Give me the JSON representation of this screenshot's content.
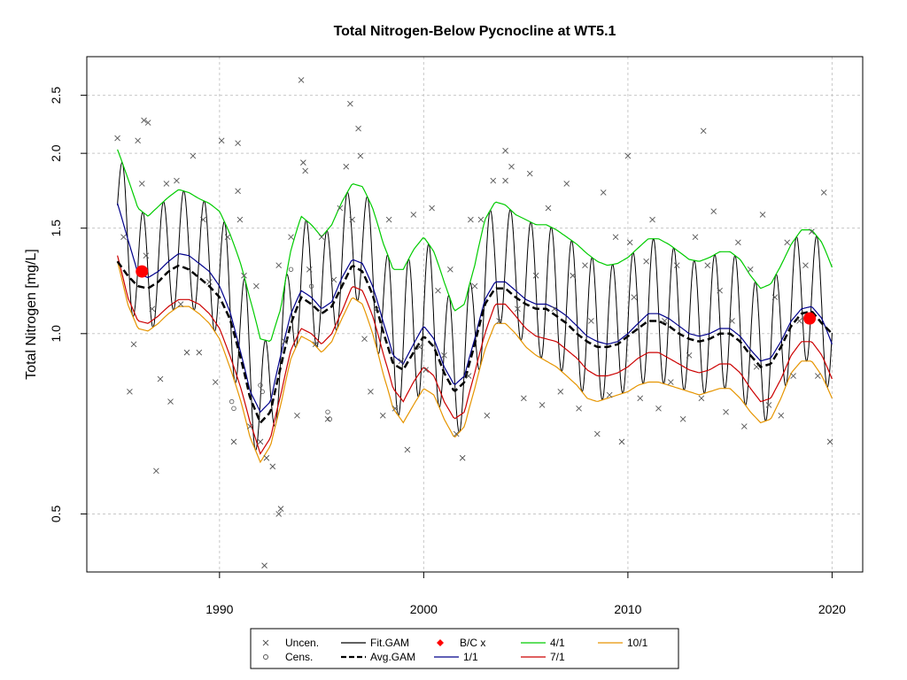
{
  "chart_data": {
    "type": "line",
    "title": "Total Nitrogen-Below Pycnocline at WT5.1",
    "xlabel": "",
    "ylabel": "Total Nitrogen [mg/L]",
    "y_scale": "log",
    "xlim": [
      1983.5,
      2021.5
    ],
    "ylim": [
      0.4,
      2.9
    ],
    "xticks": [
      1990,
      2000,
      2010,
      2020
    ],
    "yticks": [
      0.5,
      1.0,
      1.5,
      2.0,
      2.5
    ],
    "ytick_labels": [
      "0.5",
      "1.0",
      "1.5",
      "2.0",
      "2.5"
    ],
    "grid": true,
    "legend_position": "bottom",
    "colors": {
      "fit_gam": "#000000",
      "avg_gam": "#000000",
      "apr1": "#00cc00",
      "jan1": "#00008b",
      "jul1": "#cc0000",
      "oct1": "#e69500",
      "points": "#555555",
      "bc": "#ff0000"
    },
    "legend": [
      {
        "label": "Uncen.",
        "symbol": "x",
        "color": "#555555"
      },
      {
        "label": "Cens.",
        "symbol": "o",
        "color": "#555555"
      },
      {
        "label": "Fit.GAM",
        "symbol": "line",
        "color": "#000000"
      },
      {
        "label": "Avg.GAM",
        "symbol": "dash",
        "color": "#000000"
      },
      {
        "label": "B/C x",
        "symbol": "diamond",
        "color": "#ff0000"
      },
      {
        "label": "1/1",
        "symbol": "line",
        "color": "#00008b"
      },
      {
        "label": "4/1",
        "symbol": "line",
        "color": "#00cc00"
      },
      {
        "label": "7/1",
        "symbol": "line",
        "color": "#cc0000"
      },
      {
        "label": "10/1",
        "symbol": "line",
        "color": "#e69500"
      }
    ],
    "series": [
      {
        "name": "4/1",
        "x": [
          1985.0,
          1985.5,
          1986.0,
          1986.5,
          1987.0,
          1987.5,
          1988.0,
          1988.5,
          1989.0,
          1989.5,
          1990.0,
          1990.5,
          1991.0,
          1991.5,
          1992.0,
          1992.5,
          1993.0,
          1993.5,
          1994.0,
          1994.5,
          1995.0,
          1995.5,
          1996.0,
          1996.5,
          1997.0,
          1997.5,
          1998.0,
          1998.5,
          1999.0,
          1999.5,
          2000.0,
          2000.5,
          2001.0,
          2001.5,
          2002.0,
          2002.5,
          2003.0,
          2003.5,
          2004.0,
          2004.5,
          2005.0,
          2005.5,
          2006.0,
          2006.5,
          2007.0,
          2007.5,
          2008.0,
          2008.5,
          2009.0,
          2009.5,
          2010.0,
          2010.5,
          2011.0,
          2011.5,
          2012.0,
          2012.5,
          2013.0,
          2013.5,
          2014.0,
          2014.5,
          2015.0,
          2015.5,
          2016.0,
          2016.5,
          2017.0,
          2017.5,
          2018.0,
          2018.5,
          2019.0,
          2019.5,
          2020.0
        ],
        "values": [
          2.03,
          1.82,
          1.62,
          1.57,
          1.63,
          1.69,
          1.74,
          1.72,
          1.68,
          1.65,
          1.6,
          1.47,
          1.32,
          1.14,
          0.98,
          0.97,
          1.1,
          1.38,
          1.57,
          1.52,
          1.45,
          1.52,
          1.66,
          1.78,
          1.76,
          1.62,
          1.42,
          1.28,
          1.28,
          1.38,
          1.45,
          1.37,
          1.22,
          1.09,
          1.12,
          1.3,
          1.55,
          1.66,
          1.64,
          1.58,
          1.55,
          1.52,
          1.52,
          1.49,
          1.45,
          1.41,
          1.36,
          1.32,
          1.3,
          1.31,
          1.34,
          1.39,
          1.44,
          1.44,
          1.41,
          1.37,
          1.33,
          1.32,
          1.34,
          1.37,
          1.37,
          1.33,
          1.25,
          1.19,
          1.21,
          1.3,
          1.41,
          1.49,
          1.49,
          1.42,
          1.29
        ]
      },
      {
        "name": "1/1",
        "x": [
          1985.0,
          1985.5,
          1986.0,
          1986.5,
          1987.0,
          1987.5,
          1988.0,
          1988.5,
          1989.0,
          1989.5,
          1990.0,
          1990.5,
          1991.0,
          1991.5,
          1992.0,
          1992.5,
          1993.0,
          1993.5,
          1994.0,
          1994.5,
          1995.0,
          1995.5,
          1996.0,
          1996.5,
          1997.0,
          1997.5,
          1998.0,
          1998.5,
          1999.0,
          1999.5,
          2000.0,
          2000.5,
          2001.0,
          2001.5,
          2002.0,
          2002.5,
          2003.0,
          2003.5,
          2004.0,
          2004.5,
          2005.0,
          2005.5,
          2006.0,
          2006.5,
          2007.0,
          2007.5,
          2008.0,
          2008.5,
          2009.0,
          2009.5,
          2010.0,
          2010.5,
          2011.0,
          2011.5,
          2012.0,
          2012.5,
          2013.0,
          2013.5,
          2014.0,
          2014.5,
          2015.0,
          2015.5,
          2016.0,
          2016.5,
          2017.0,
          2017.5,
          2018.0,
          2018.5,
          2019.0,
          2019.5,
          2020.0
        ],
        "values": [
          1.65,
          1.44,
          1.26,
          1.24,
          1.27,
          1.32,
          1.36,
          1.35,
          1.31,
          1.27,
          1.2,
          1.09,
          0.94,
          0.8,
          0.74,
          0.77,
          0.92,
          1.08,
          1.18,
          1.15,
          1.1,
          1.13,
          1.24,
          1.33,
          1.31,
          1.2,
          1.05,
          0.92,
          0.89,
          0.96,
          1.03,
          0.98,
          0.88,
          0.82,
          0.85,
          0.98,
          1.14,
          1.22,
          1.22,
          1.18,
          1.14,
          1.12,
          1.12,
          1.1,
          1.07,
          1.03,
          0.99,
          0.97,
          0.96,
          0.97,
          1.0,
          1.04,
          1.08,
          1.08,
          1.06,
          1.03,
          1.0,
          0.99,
          1.0,
          1.02,
          1.02,
          0.99,
          0.94,
          0.9,
          0.91,
          0.97,
          1.05,
          1.1,
          1.11,
          1.06,
          0.96
        ]
      },
      {
        "name": "7/1",
        "x": [
          1985.0,
          1985.5,
          1986.0,
          1986.5,
          1987.0,
          1987.5,
          1988.0,
          1988.5,
          1989.0,
          1989.5,
          1990.0,
          1990.5,
          1991.0,
          1991.5,
          1992.0,
          1992.5,
          1993.0,
          1993.5,
          1994.0,
          1994.5,
          1995.0,
          1995.5,
          1996.0,
          1996.5,
          1997.0,
          1997.5,
          1998.0,
          1998.5,
          1999.0,
          1999.5,
          2000.0,
          2000.5,
          2001.0,
          2001.5,
          2002.0,
          2002.5,
          2003.0,
          2003.5,
          2004.0,
          2004.5,
          2005.0,
          2005.5,
          2006.0,
          2006.5,
          2007.0,
          2007.5,
          2008.0,
          2008.5,
          2009.0,
          2009.5,
          2010.0,
          2010.5,
          2011.0,
          2011.5,
          2012.0,
          2012.5,
          2013.0,
          2013.5,
          2014.0,
          2014.5,
          2015.0,
          2015.5,
          2016.0,
          2016.5,
          2017.0,
          2017.5,
          2018.0,
          2018.5,
          2019.0,
          2019.5,
          2020.0
        ],
        "values": [
          1.35,
          1.15,
          1.05,
          1.04,
          1.07,
          1.11,
          1.14,
          1.14,
          1.12,
          1.08,
          1.02,
          0.92,
          0.82,
          0.71,
          0.63,
          0.67,
          0.79,
          0.94,
          1.02,
          1.0,
          0.96,
          1.0,
          1.09,
          1.2,
          1.18,
          1.07,
          0.93,
          0.81,
          0.77,
          0.83,
          0.88,
          0.85,
          0.77,
          0.72,
          0.74,
          0.86,
          1.0,
          1.12,
          1.12,
          1.07,
          1.02,
          0.99,
          0.98,
          0.97,
          0.94,
          0.91,
          0.87,
          0.85,
          0.85,
          0.86,
          0.88,
          0.91,
          0.93,
          0.93,
          0.91,
          0.89,
          0.87,
          0.86,
          0.87,
          0.89,
          0.89,
          0.86,
          0.81,
          0.77,
          0.78,
          0.84,
          0.92,
          0.97,
          0.97,
          0.92,
          0.84
        ]
      },
      {
        "name": "10/1",
        "x": [
          1985.0,
          1985.5,
          1986.0,
          1986.5,
          1987.0,
          1987.5,
          1988.0,
          1988.5,
          1989.0,
          1989.5,
          1990.0,
          1990.5,
          1991.0,
          1991.5,
          1992.0,
          1992.5,
          1993.0,
          1993.5,
          1994.0,
          1994.5,
          1995.0,
          1995.5,
          1996.0,
          1996.5,
          1997.0,
          1997.5,
          1998.0,
          1998.5,
          1999.0,
          1999.5,
          2000.0,
          2000.5,
          2001.0,
          2001.5,
          2002.0,
          2002.5,
          2003.0,
          2003.5,
          2004.0,
          2004.5,
          2005.0,
          2005.5,
          2006.0,
          2006.5,
          2007.0,
          2007.5,
          2008.0,
          2008.5,
          2009.0,
          2009.5,
          2010.0,
          2010.5,
          2011.0,
          2011.5,
          2012.0,
          2012.5,
          2013.0,
          2013.5,
          2014.0,
          2014.5,
          2015.0,
          2015.5,
          2016.0,
          2016.5,
          2017.0,
          2017.5,
          2018.0,
          2018.5,
          2019.0,
          2019.5,
          2020.0
        ],
        "values": [
          1.32,
          1.12,
          1.02,
          1.01,
          1.04,
          1.08,
          1.11,
          1.11,
          1.08,
          1.04,
          0.98,
          0.88,
          0.78,
          0.67,
          0.61,
          0.65,
          0.76,
          0.91,
          0.99,
          0.97,
          0.93,
          0.97,
          1.06,
          1.15,
          1.12,
          1.0,
          0.86,
          0.75,
          0.71,
          0.76,
          0.81,
          0.79,
          0.72,
          0.67,
          0.7,
          0.81,
          0.94,
          1.04,
          1.04,
          1.0,
          0.95,
          0.92,
          0.9,
          0.88,
          0.85,
          0.82,
          0.78,
          0.77,
          0.78,
          0.79,
          0.8,
          0.82,
          0.83,
          0.83,
          0.82,
          0.81,
          0.8,
          0.79,
          0.8,
          0.81,
          0.81,
          0.78,
          0.74,
          0.71,
          0.72,
          0.78,
          0.86,
          0.9,
          0.9,
          0.85,
          0.78
        ]
      },
      {
        "name": "Avg.GAM",
        "x": [
          1985.0,
          1985.5,
          1986.0,
          1986.5,
          1987.0,
          1987.5,
          1988.0,
          1988.5,
          1989.0,
          1989.5,
          1990.0,
          1990.5,
          1991.0,
          1991.5,
          1992.0,
          1992.5,
          1993.0,
          1993.5,
          1994.0,
          1994.5,
          1995.0,
          1995.5,
          1996.0,
          1996.5,
          1997.0,
          1997.5,
          1998.0,
          1998.5,
          1999.0,
          1999.5,
          2000.0,
          2000.5,
          2001.0,
          2001.5,
          2002.0,
          2002.5,
          2003.0,
          2003.5,
          2004.0,
          2004.5,
          2005.0,
          2005.5,
          2006.0,
          2006.5,
          2007.0,
          2007.5,
          2008.0,
          2008.5,
          2009.0,
          2009.5,
          2010.0,
          2010.5,
          2011.0,
          2011.5,
          2012.0,
          2012.5,
          2013.0,
          2013.5,
          2014.0,
          2014.5,
          2015.0,
          2015.5,
          2016.0,
          2016.5,
          2017.0,
          2017.5,
          2018.0,
          2018.5,
          2019.0,
          2019.5,
          2020.0
        ],
        "values": [
          1.32,
          1.25,
          1.2,
          1.19,
          1.22,
          1.27,
          1.3,
          1.28,
          1.24,
          1.2,
          1.15,
          1.06,
          0.92,
          0.78,
          0.71,
          0.74,
          0.88,
          1.04,
          1.15,
          1.12,
          1.08,
          1.11,
          1.2,
          1.3,
          1.27,
          1.16,
          1.01,
          0.89,
          0.87,
          0.93,
          0.99,
          0.95,
          0.86,
          0.8,
          0.83,
          0.96,
          1.12,
          1.19,
          1.19,
          1.15,
          1.12,
          1.1,
          1.1,
          1.07,
          1.04,
          1.0,
          0.97,
          0.95,
          0.95,
          0.96,
          0.99,
          1.02,
          1.05,
          1.05,
          1.03,
          1.0,
          0.98,
          0.97,
          0.98,
          1.0,
          1.0,
          0.97,
          0.92,
          0.88,
          0.89,
          0.95,
          1.03,
          1.08,
          1.09,
          1.04,
          1.0
        ]
      }
    ],
    "fit_gam": {
      "name": "Fit.GAM",
      "note_series": "seasonal oscillation: peak ~ 4/1 curve, trough ~ 10/1 curve, one cycle per year",
      "peak_series": "4/1",
      "trough_series": "10/1",
      "cycles_per_year": 1,
      "x_start": 1985.0,
      "x_end": 2020.0
    },
    "bc_points": [
      {
        "x": 1986.2,
        "y": 1.27
      },
      {
        "x": 2018.9,
        "y": 1.06
      }
    ],
    "uncensored_points": {
      "x": [
        1985.0,
        1985.3,
        1985.6,
        1985.8,
        1986.0,
        1986.2,
        1986.5,
        1986.7,
        1986.9,
        1987.1,
        1987.4,
        1987.6,
        1987.9,
        1988.1,
        1988.4,
        1988.7,
        1989.0,
        1989.2,
        1989.5,
        1989.8,
        1990.1,
        1990.4,
        1990.7,
        1990.9,
        1991.2,
        1991.5,
        1991.8,
        1992.0,
        1992.3,
        1992.6,
        1992.9,
        1993.2,
        1993.5,
        1993.8,
        1994.1,
        1994.4,
        1994.7,
        1995.0,
        1995.3,
        1995.6,
        1995.9,
        1996.2,
        1996.5,
        1996.8,
        1997.1,
        1997.4,
        1997.7,
        1998.0,
        1998.3,
        1998.6,
        1998.9,
        1999.2,
        1999.5,
        1999.8,
        2000.1,
        2000.4,
        2000.7,
        2001.0,
        2001.3,
        2001.6,
        2001.9,
        2002.2,
        2002.5,
        2002.8,
        2003.1,
        2003.4,
        2003.7,
        2004.0,
        2004.3,
        2004.6,
        2004.9,
        2005.2,
        2005.5,
        2005.8,
        2006.1,
        2006.4,
        2006.7,
        2007.0,
        2007.3,
        2007.6,
        2007.9,
        2008.2,
        2008.5,
        2008.8,
        2009.1,
        2009.4,
        2009.7,
        2010.0,
        2010.3,
        2010.6,
        2010.9,
        2011.2,
        2011.5,
        2011.8,
        2012.1,
        2012.4,
        2012.7,
        2013.0,
        2013.3,
        2013.6,
        2013.9,
        2014.2,
        2014.5,
        2014.8,
        2015.1,
        2015.4,
        2015.7,
        2016.0,
        2016.3,
        2016.6,
        2016.9,
        2017.2,
        2017.5,
        2017.8,
        2018.1,
        2018.4,
        2018.7,
        2019.0,
        2019.3,
        2019.6,
        2019.9,
        1986.3,
        1986.4,
        1990.9,
        1994.0,
        1994.2,
        1996.4,
        1996.9,
        2002.3,
        2010.1,
        2013.7,
        1991.0,
        1992.2,
        1992.9,
        1993.0,
        2004.0
      ],
      "y": [
        2.12,
        1.45,
        0.8,
        0.96,
        2.1,
        1.78,
        2.25,
        1.1,
        0.59,
        0.84,
        1.78,
        0.77,
        1.8,
        1.12,
        0.93,
        1.98,
        0.93,
        1.55,
        1.22,
        0.83,
        2.1,
        1.45,
        0.66,
        1.73,
        1.25,
        0.7,
        1.2,
        0.66,
        0.62,
        0.6,
        1.3,
        0.97,
        1.45,
        0.73,
        1.93,
        1.28,
        0.96,
        1.45,
        0.72,
        1.23,
        1.62,
        1.9,
        1.55,
        2.2,
        0.98,
        0.8,
        1.1,
        0.73,
        1.55,
        0.75,
        0.9,
        0.64,
        1.58,
        0.95,
        0.87,
        1.62,
        1.18,
        0.92,
        1.28,
        0.68,
        0.62,
        0.85,
        1.2,
        1.55,
        0.73,
        1.8,
        1.05,
        1.8,
        1.9,
        1.1,
        0.78,
        1.85,
        1.25,
        0.76,
        1.62,
        1.1,
        0.8,
        1.78,
        1.25,
        0.75,
        1.3,
        1.05,
        0.68,
        1.72,
        0.79,
        1.45,
        0.66,
        1.98,
        1.15,
        0.78,
        1.32,
        1.55,
        0.75,
        1.05,
        0.83,
        1.3,
        0.72,
        0.92,
        1.45,
        0.78,
        1.3,
        1.6,
        1.18,
        0.74,
        1.05,
        1.42,
        0.7,
        1.28,
        0.88,
        1.58,
        0.76,
        1.15,
        0.73,
        1.42,
        0.85,
        1.05,
        1.3,
        1.48,
        0.85,
        1.72,
        0.66,
        2.27,
        1.35,
        2.08,
        2.65,
        1.87,
        2.42,
        1.98,
        1.55,
        1.42,
        2.18,
        1.55,
        0.41,
        0.5,
        0.51,
        2.02
      ]
    },
    "censored_points": {
      "x": [
        1990.6,
        1990.7,
        1992.0,
        1992.1,
        1993.5,
        1994.5,
        1995.3,
        1995.4
      ],
      "y": [
        0.77,
        0.75,
        0.82,
        0.8,
        1.28,
        1.2,
        0.74,
        0.72
      ]
    }
  }
}
